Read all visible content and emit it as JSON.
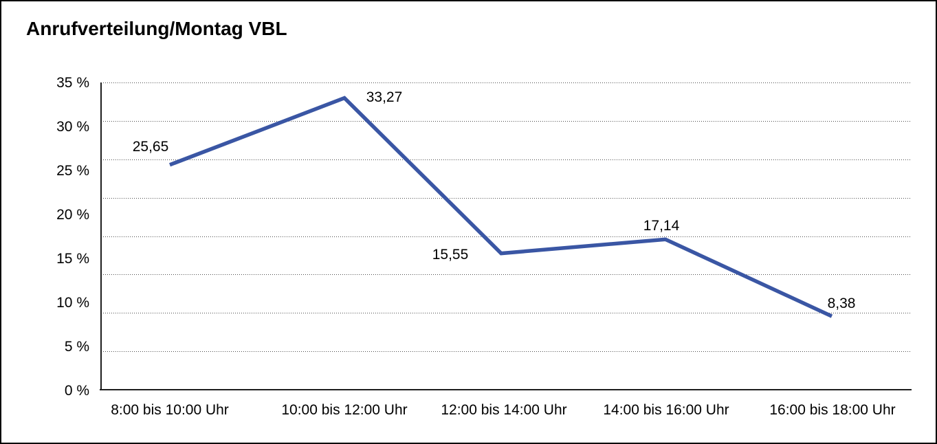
{
  "window": {
    "background": "#ffffff",
    "border_color": "#000000"
  },
  "title": "Anrufverteilung/Montag VBL",
  "chart_data": {
    "type": "line",
    "title": "Anrufverteilung/Montag VBL",
    "categories": [
      "8:00 bis 10:00 Uhr",
      "10:00 bis 12:00 Uhr",
      "12:00 bis 14:00 Uhr",
      "14:00 bis 16:00 Uhr",
      "16:00 bis 18:00 Uhr"
    ],
    "values": [
      25.65,
      33.27,
      15.55,
      17.14,
      8.38
    ],
    "value_labels": [
      "25,65",
      "33,27",
      "15,55",
      "17,14",
      "8,38"
    ],
    "yticks_top_to_bottom": [
      "35 %",
      "30 %",
      "25 %",
      "20 %",
      "15 %",
      "10 %",
      "5 %",
      "0 %"
    ],
    "xlabel": "",
    "ylabel": "",
    "ylim": [
      0,
      35
    ],
    "grid": "horizontal dotted, 8 equal bands",
    "legend_position": "none",
    "line_color": "#3A56A4",
    "axis_color": "#1d1d1d",
    "text_color": "#000000"
  }
}
